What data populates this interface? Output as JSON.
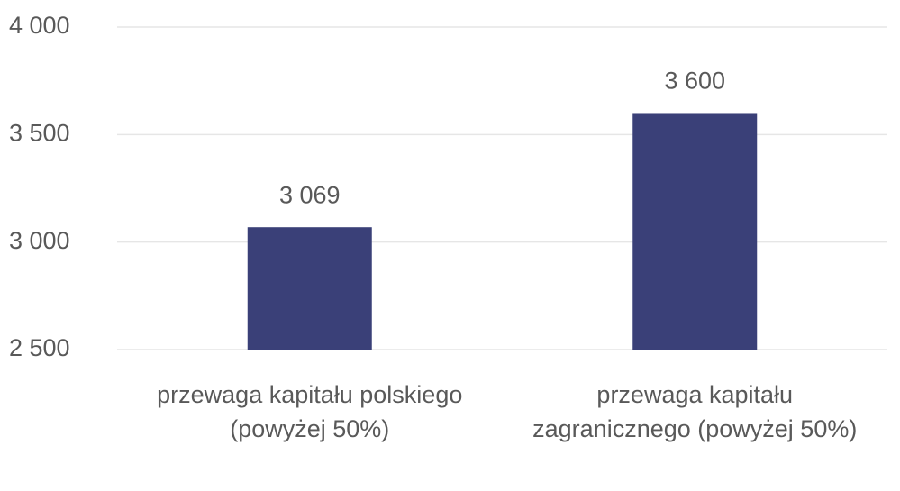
{
  "chart_data": {
    "type": "bar",
    "categories": [
      "przewaga kapitału polskiego (powyżej 50%)",
      "przewaga kapitału zagranicznego (powyżej 50%)"
    ],
    "values": [
      3069,
      3600
    ],
    "value_labels": [
      "3 069",
      "3 600"
    ],
    "color": "#3a4078",
    "ylim": [
      2500,
      4000
    ],
    "yticks": [
      {
        "value": 2500,
        "label": "2 500"
      },
      {
        "value": 3000,
        "label": "3 000"
      },
      {
        "value": 3500,
        "label": "3 500"
      },
      {
        "value": 4000,
        "label": "4 000"
      }
    ],
    "grid": true
  }
}
